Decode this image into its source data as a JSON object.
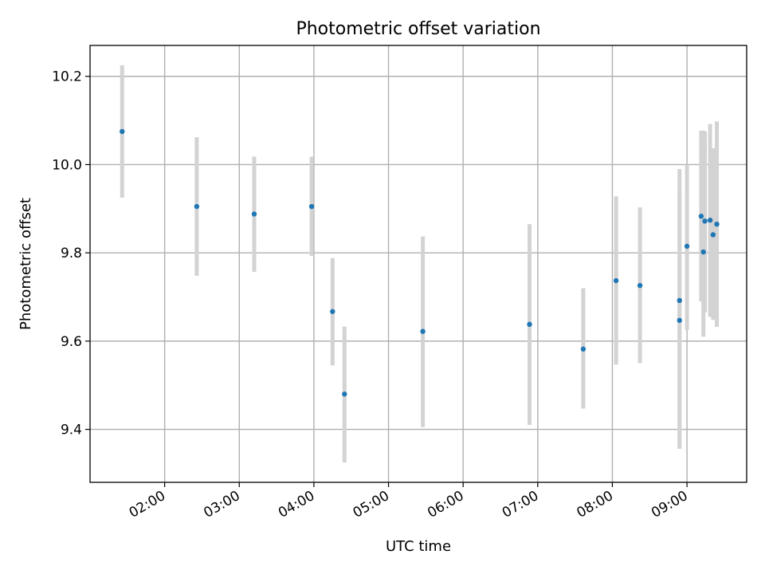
{
  "chart_data": {
    "type": "scatter",
    "title": "Photometric offset variation",
    "xlabel": "UTC time",
    "ylabel": "Photometric offset",
    "grid": true,
    "x_unit": "hours UTC",
    "xlim": [
      1.0,
      9.8
    ],
    "ylim": [
      9.28,
      10.27
    ],
    "x_ticks": [
      {
        "value": 2,
        "label": "02:00"
      },
      {
        "value": 3,
        "label": "03:00"
      },
      {
        "value": 4,
        "label": "04:00"
      },
      {
        "value": 5,
        "label": "05:00"
      },
      {
        "value": 6,
        "label": "06:00"
      },
      {
        "value": 7,
        "label": "07:00"
      },
      {
        "value": 8,
        "label": "08:00"
      },
      {
        "value": 9,
        "label": "09:00"
      }
    ],
    "y_ticks": [
      {
        "value": 9.4,
        "label": "9.4"
      },
      {
        "value": 9.6,
        "label": "9.6"
      },
      {
        "value": 9.8,
        "label": "9.8"
      },
      {
        "value": 10.0,
        "label": "10.0"
      },
      {
        "value": 10.2,
        "label": "10.2"
      }
    ],
    "marker_color": "#1f77b4",
    "errorbar_color": "#d3d3d3",
    "points": [
      {
        "x": 1.43,
        "y": 10.075,
        "yerr_low": 9.925,
        "yerr_high": 10.225
      },
      {
        "x": 2.43,
        "y": 9.905,
        "yerr_low": 9.748,
        "yerr_high": 10.062
      },
      {
        "x": 3.2,
        "y": 9.888,
        "yerr_low": 9.757,
        "yerr_high": 10.018
      },
      {
        "x": 3.97,
        "y": 9.905,
        "yerr_low": 9.793,
        "yerr_high": 10.018
      },
      {
        "x": 4.25,
        "y": 9.667,
        "yerr_low": 9.545,
        "yerr_high": 9.788
      },
      {
        "x": 4.41,
        "y": 9.48,
        "yerr_low": 9.325,
        "yerr_high": 9.633
      },
      {
        "x": 5.46,
        "y": 9.622,
        "yerr_low": 9.405,
        "yerr_high": 9.837
      },
      {
        "x": 6.89,
        "y": 9.638,
        "yerr_low": 9.41,
        "yerr_high": 9.865
      },
      {
        "x": 7.61,
        "y": 9.582,
        "yerr_low": 9.447,
        "yerr_high": 9.72
      },
      {
        "x": 8.05,
        "y": 9.737,
        "yerr_low": 9.547,
        "yerr_high": 9.928
      },
      {
        "x": 8.37,
        "y": 9.726,
        "yerr_low": 9.55,
        "yerr_high": 9.903
      },
      {
        "x": 8.9,
        "y": 9.692,
        "yerr_low": 9.356,
        "yerr_high": 9.99
      },
      {
        "x": 8.9,
        "y": 9.647,
        "yerr_low": 9.356,
        "yerr_high": 9.94
      },
      {
        "x": 9.0,
        "y": 9.815,
        "yerr_low": 9.625,
        "yerr_high": 10.0
      },
      {
        "x": 9.19,
        "y": 9.883,
        "yerr_low": 9.69,
        "yerr_high": 10.077
      },
      {
        "x": 9.22,
        "y": 9.802,
        "yerr_low": 9.61,
        "yerr_high": 10.077
      },
      {
        "x": 9.24,
        "y": 9.872,
        "yerr_low": 9.665,
        "yerr_high": 10.075
      },
      {
        "x": 9.31,
        "y": 9.874,
        "yerr_low": 9.655,
        "yerr_high": 10.092
      },
      {
        "x": 9.35,
        "y": 9.841,
        "yerr_low": 9.648,
        "yerr_high": 10.037
      },
      {
        "x": 9.4,
        "y": 9.865,
        "yerr_low": 9.632,
        "yerr_high": 10.098
      }
    ]
  }
}
